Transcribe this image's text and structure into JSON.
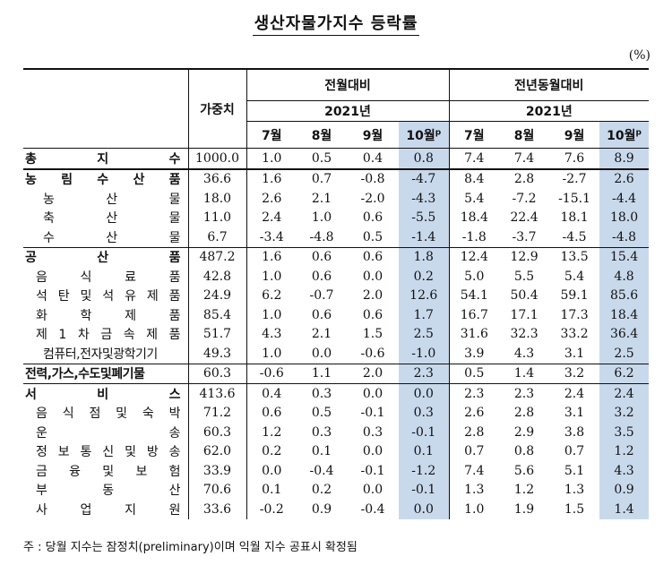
{
  "title": "생산자물가지수 등락률",
  "unit": "(%)",
  "header": {
    "weight": "가중치",
    "mom_group": "전월대비",
    "yoy_group": "전년동월대비",
    "year": "2021년",
    "months": [
      "7월",
      "8월",
      "9월",
      "10월"
    ],
    "prelim_mark": "p"
  },
  "rows": [
    {
      "label": "총 지 수",
      "weight": "1000.0",
      "mom": [
        "1.0",
        "0.5",
        "0.4",
        "0.8"
      ],
      "yoy": [
        "7.4",
        "7.4",
        "7.6",
        "8.9"
      ]
    },
    {
      "label": "농 림 수 산 품",
      "weight": "36.6",
      "mom": [
        "1.6",
        "0.7",
        "-0.8",
        "-4.7"
      ],
      "yoy": [
        "8.4",
        "2.8",
        "-2.7",
        "2.6"
      ]
    },
    {
      "label": "농 산 물",
      "weight": "18.0",
      "mom": [
        "2.6",
        "2.1",
        "-2.0",
        "-4.3"
      ],
      "yoy": [
        "5.4",
        "-7.2",
        "-15.1",
        "-4.4"
      ]
    },
    {
      "label": "축 산 물",
      "weight": "11.0",
      "mom": [
        "2.4",
        "1.0",
        "0.6",
        "-5.5"
      ],
      "yoy": [
        "18.4",
        "22.4",
        "18.1",
        "18.0"
      ]
    },
    {
      "label": "수 산 물",
      "weight": "6.7",
      "mom": [
        "-3.4",
        "-4.8",
        "0.5",
        "-1.4"
      ],
      "yoy": [
        "-1.8",
        "-3.7",
        "-4.5",
        "-4.8"
      ]
    },
    {
      "label": "공 산 품",
      "weight": "487.2",
      "mom": [
        "1.6",
        "0.6",
        "0.6",
        "1.8"
      ],
      "yoy": [
        "12.4",
        "12.9",
        "13.5",
        "15.4"
      ]
    },
    {
      "label": "음 식 료 품",
      "weight": "42.8",
      "mom": [
        "1.0",
        "0.6",
        "0.0",
        "0.2"
      ],
      "yoy": [
        "5.0",
        "5.5",
        "5.4",
        "4.8"
      ]
    },
    {
      "label": "석 탄 및 석 유 제 품",
      "weight": "24.9",
      "mom": [
        "6.2",
        "-0.7",
        "2.0",
        "12.6"
      ],
      "yoy": [
        "54.1",
        "50.4",
        "59.1",
        "85.6"
      ]
    },
    {
      "label": "화 학 제 품",
      "weight": "85.4",
      "mom": [
        "1.0",
        "0.6",
        "0.6",
        "1.7"
      ],
      "yoy": [
        "16.7",
        "17.1",
        "17.3",
        "18.4"
      ]
    },
    {
      "label": "제 1 차 금 속 제 품",
      "weight": "51.7",
      "mom": [
        "4.3",
        "2.1",
        "1.5",
        "2.5"
      ],
      "yoy": [
        "31.6",
        "32.3",
        "33.2",
        "36.4"
      ]
    },
    {
      "label": "컴퓨터,전자및광학기기",
      "weight": "49.3",
      "mom": [
        "1.0",
        "0.0",
        "-0.6",
        "-1.0"
      ],
      "yoy": [
        "3.9",
        "4.3",
        "3.1",
        "2.5"
      ]
    },
    {
      "label": "전력,가스,수도및폐기물",
      "weight": "60.3",
      "mom": [
        "-0.6",
        "1.1",
        "2.0",
        "2.3"
      ],
      "yoy": [
        "0.5",
        "1.4",
        "3.2",
        "6.2"
      ]
    },
    {
      "label": "서 비 스",
      "weight": "413.6",
      "mom": [
        "0.4",
        "0.3",
        "0.0",
        "0.0"
      ],
      "yoy": [
        "2.3",
        "2.3",
        "2.4",
        "2.4"
      ]
    },
    {
      "label": "음 식 점 및 숙 박",
      "weight": "71.2",
      "mom": [
        "0.6",
        "0.5",
        "-0.1",
        "0.3"
      ],
      "yoy": [
        "2.6",
        "2.8",
        "3.1",
        "3.2"
      ]
    },
    {
      "label": "운 송",
      "weight": "60.3",
      "mom": [
        "1.2",
        "0.3",
        "0.3",
        "-0.1"
      ],
      "yoy": [
        "2.8",
        "2.9",
        "3.8",
        "3.5"
      ]
    },
    {
      "label": "정 보 통 신 및 방 송",
      "weight": "62.0",
      "mom": [
        "0.2",
        "0.1",
        "0.0",
        "0.1"
      ],
      "yoy": [
        "0.7",
        "0.8",
        "0.7",
        "1.2"
      ]
    },
    {
      "label": "금 융 및 보 험",
      "weight": "33.9",
      "mom": [
        "0.0",
        "-0.4",
        "-0.1",
        "-1.2"
      ],
      "yoy": [
        "7.4",
        "5.6",
        "5.1",
        "4.3"
      ]
    },
    {
      "label": "부 동 산",
      "weight": "70.6",
      "mom": [
        "0.1",
        "0.2",
        "0.0",
        "-0.1"
      ],
      "yoy": [
        "1.3",
        "1.2",
        "1.3",
        "0.9"
      ]
    },
    {
      "label": "사 업 지 원",
      "weight": "33.6",
      "mom": [
        "-0.2",
        "0.9",
        "-0.4",
        "0.0"
      ],
      "yoy": [
        "1.0",
        "1.9",
        "1.5",
        "1.4"
      ]
    }
  ],
  "footnote": "주 : 당월 지수는 잠정치(preliminary)이며 익월 지수 공표시 확정됨",
  "colors": {
    "highlight": "#c9d9ec",
    "rule": "#111111"
  }
}
